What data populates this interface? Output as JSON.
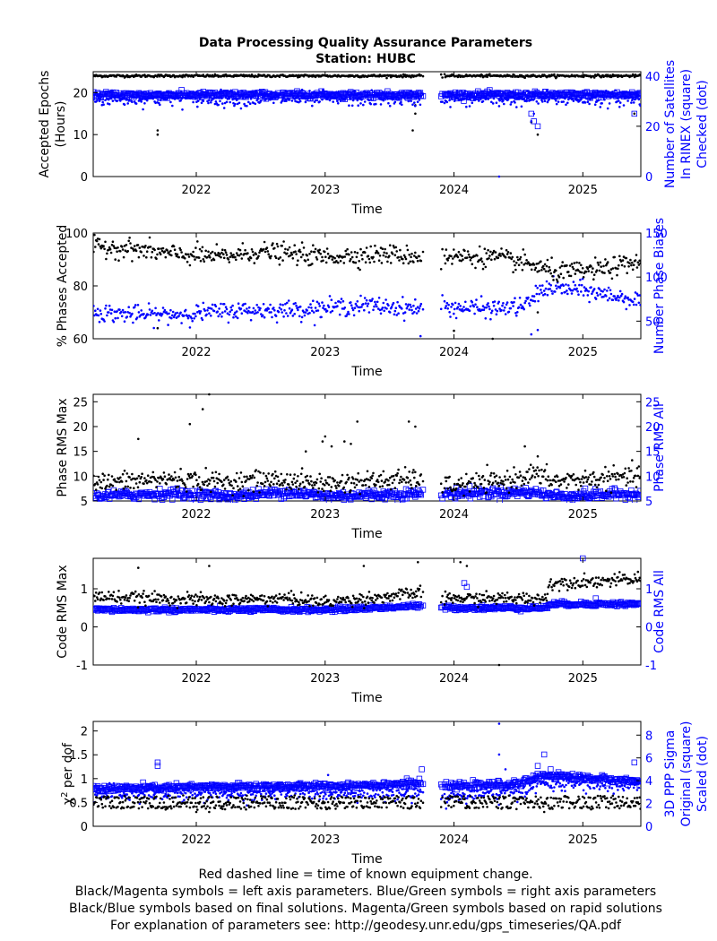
{
  "chart_data": {
    "title": "Data Processing Quality Assurance Parameters",
    "subtitle": "Station: HUBC",
    "xrange": [
      2021.2,
      2025.45
    ],
    "xticks": [
      "2022",
      "2023",
      "2024",
      "2025"
    ],
    "xtick_values": [
      2022,
      2023,
      2024,
      2025
    ],
    "data_gap": [
      2023.75,
      2023.92
    ],
    "panels": [
      {
        "type": "scatter",
        "xlabel": "Time",
        "ylabel_lines": [
          "Accepted Epochs",
          "(Hours)"
        ],
        "ylabel_right_lines": [
          "Number of Satellites",
          "In RINEX (square)",
          "Checked (dot)"
        ],
        "ylim": [
          0,
          25
        ],
        "yticks": [
          "0",
          "10",
          "20"
        ],
        "ytick_values": [
          0,
          10,
          20
        ],
        "ylim_right": [
          0,
          41.7
        ],
        "yticks_right": [
          "0",
          "20",
          "40"
        ],
        "ytick_values_right": [
          0,
          20,
          40
        ],
        "left_series": {
          "name": "accepted epochs",
          "symbol": "dot",
          "color": "#000000",
          "base": 24,
          "noise": 0.15,
          "lo_extra": [
            [
              2021.7,
              10
            ],
            [
              2021.7,
              11
            ],
            [
              2023.68,
              11
            ],
            [
              2023.7,
              15
            ],
            [
              2023.7,
              17
            ],
            [
              2024.65,
              10
            ],
            [
              2024.6,
              13
            ],
            [
              2025.4,
              15
            ]
          ]
        },
        "right_series": [
          {
            "name": "satellites in RINEX",
            "symbol": "square",
            "color": "#0000ff",
            "base": 32.5,
            "noise": 0.6,
            "lo_extra": [
              [
                2024.6,
                25
              ],
              [
                2024.62,
                22
              ],
              [
                2024.65,
                20
              ],
              [
                2025.4,
                25
              ]
            ]
          },
          {
            "name": "satellites checked",
            "symbol": "dot",
            "color": "#0000ff",
            "base": 31,
            "noise": 1.5,
            "lo_extra": [
              [
                2024.35,
                0
              ],
              [
                2024.35,
                28
              ],
              [
                2024.6,
                22
              ],
              [
                2024.62,
                25
              ]
            ]
          }
        ]
      },
      {
        "type": "scatter",
        "xlabel": "Time",
        "ylabel_lines": [
          "% Phases Accepted"
        ],
        "ylabel_right_lines": [
          "Number Phase Biases"
        ],
        "ylim": [
          60,
          100
        ],
        "yticks": [
          "60",
          "80",
          "100"
        ],
        "ytick_values": [
          60,
          80,
          100
        ],
        "ylim_right": [
          30,
          150
        ],
        "yticks_right": [
          "50",
          "100",
          "150"
        ],
        "ytick_values_right": [
          50,
          100,
          150
        ],
        "left_series": {
          "name": "phases accepted",
          "symbol": "dot",
          "color": "#000000",
          "trend": [
            [
              2021.2,
              95
            ],
            [
              2021.5,
              94
            ],
            [
              2021.8,
              92
            ],
            [
              2022.2,
              91
            ],
            [
              2022.5,
              93
            ],
            [
              2023.0,
              91
            ],
            [
              2023.5,
              92
            ],
            [
              2023.75,
              91
            ],
            [
              2023.92,
              91
            ],
            [
              2024.3,
              91
            ],
            [
              2024.6,
              88
            ],
            [
              2024.8,
              85
            ],
            [
              2025.1,
              86
            ],
            [
              2025.45,
              89
            ]
          ],
          "noise": 1.8,
          "lo_extra": [
            [
              2021.7,
              64
            ],
            [
              2024.0,
              63
            ],
            [
              2024.65,
              70
            ],
            [
              2024.3,
              60
            ]
          ]
        },
        "right_series": [
          {
            "name": "number phase biases",
            "symbol": "dot",
            "color": "#0000ff",
            "trend": [
              [
                2021.2,
                60
              ],
              [
                2021.6,
                57
              ],
              [
                2021.9,
                58
              ],
              [
                2022.3,
                62
              ],
              [
                2022.8,
                63
              ],
              [
                2023.3,
                68
              ],
              [
                2023.75,
                64
              ],
              [
                2023.92,
                66
              ],
              [
                2024.3,
                64
              ],
              [
                2024.55,
                67
              ],
              [
                2024.7,
                88
              ],
              [
                2025.0,
                85
              ],
              [
                2025.45,
                73
              ]
            ],
            "noise": 5,
            "lo_extra": [
              [
                2023.74,
                33
              ],
              [
                2024.6,
                35
              ],
              [
                2024.65,
                40
              ]
            ]
          }
        ]
      },
      {
        "type": "scatter",
        "xlabel": "Time",
        "ylabel_lines": [
          "Phase RMS Max"
        ],
        "ylabel_right_lines": [
          "Phase RMS All"
        ],
        "ylim": [
          5,
          26.5
        ],
        "yticks": [
          "5",
          "10",
          "15",
          "20",
          "25"
        ],
        "ytick_values": [
          5,
          10,
          15,
          20,
          25
        ],
        "ylim_right": [
          5,
          26.5
        ],
        "yticks_right": [
          "5",
          "10",
          "15",
          "20",
          "25"
        ],
        "ytick_values_right": [
          5,
          10,
          15,
          20,
          25
        ],
        "left_series": {
          "name": "phase rms max",
          "symbol": "dot",
          "color": "#000000",
          "trend": [
            [
              2021.2,
              8.5
            ],
            [
              2021.8,
              9.5
            ],
            [
              2022.2,
              8.8
            ],
            [
              2022.6,
              9.3
            ],
            [
              2023.0,
              8.5
            ],
            [
              2023.75,
              9.5
            ],
            [
              2023.92,
              8
            ],
            [
              2024.4,
              9
            ],
            [
              2024.6,
              10.5
            ],
            [
              2024.8,
              9
            ],
            [
              2025.45,
              10
            ]
          ],
          "noise": 1.0,
          "hi_extra": [
            [
              2021.55,
              17.5
            ],
            [
              2021.95,
              20.5
            ],
            [
              2022.05,
              23.5
            ],
            [
              2022.1,
              26.5
            ],
            [
              2022.98,
              17
            ],
            [
              2023.0,
              18
            ],
            [
              2023.05,
              16
            ],
            [
              2022.85,
              15
            ],
            [
              2023.15,
              17
            ],
            [
              2023.2,
              16.5
            ],
            [
              2023.25,
              21
            ],
            [
              2023.65,
              21
            ],
            [
              2023.7,
              20
            ],
            [
              2024.55,
              16
            ],
            [
              2024.65,
              14
            ]
          ]
        },
        "right_series": [
          {
            "name": "phase rms all",
            "symbol": "square",
            "color": "#0000ff",
            "trend": [
              [
                2021.2,
                6
              ],
              [
                2021.8,
                6.5
              ],
              [
                2022.3,
                6
              ],
              [
                2022.7,
                6.8
              ],
              [
                2023.0,
                6
              ],
              [
                2023.75,
                6.5
              ],
              [
                2023.92,
                6.5
              ],
              [
                2024.6,
                6.8
              ],
              [
                2024.8,
                6
              ],
              [
                2025.45,
                6.5
              ]
            ],
            "noise": 0.5
          }
        ]
      },
      {
        "type": "scatter",
        "xlabel": "Time",
        "ylabel_lines": [
          "Code RMS Max"
        ],
        "ylabel_right_lines": [
          "Code RMS All"
        ],
        "ylim": [
          -1,
          1.8
        ],
        "yticks": [
          "-1",
          "0",
          "1"
        ],
        "ytick_values": [
          -1,
          0,
          1
        ],
        "ylim_right": [
          -1,
          1.8
        ],
        "yticks_right": [
          "-1",
          "0",
          "1"
        ],
        "ytick_values_right": [
          -1,
          0,
          1
        ],
        "left_series": {
          "name": "code rms max",
          "symbol": "dot",
          "color": "#000000",
          "trend": [
            [
              2021.2,
              0.8
            ],
            [
              2021.6,
              0.75
            ],
            [
              2022.2,
              0.7
            ],
            [
              2022.7,
              0.75
            ],
            [
              2023.0,
              0.65
            ],
            [
              2023.5,
              0.8
            ],
            [
              2023.75,
              0.9
            ],
            [
              2023.92,
              0.75
            ],
            [
              2024.5,
              0.75
            ],
            [
              2024.72,
              0.75
            ],
            [
              2024.74,
              1.15
            ],
            [
              2025.45,
              1.25
            ]
          ],
          "noise": 0.08,
          "hi_extra": [
            [
              2021.55,
              1.55
            ],
            [
              2022.1,
              1.6
            ],
            [
              2023.3,
              1.6
            ],
            [
              2023.72,
              1.7
            ],
            [
              2024.05,
              1.7
            ],
            [
              2024.1,
              1.6
            ]
          ],
          "lo_extra": [
            [
              2024.35,
              -1
            ]
          ]
        },
        "right_series": [
          {
            "name": "code rms all",
            "symbol": "square",
            "color": "#0000ff",
            "trend": [
              [
                2021.2,
                0.45
              ],
              [
                2022.5,
                0.45
              ],
              [
                2023.0,
                0.45
              ],
              [
                2023.75,
                0.55
              ],
              [
                2023.92,
                0.5
              ],
              [
                2024.72,
                0.5
              ],
              [
                2024.74,
                0.6
              ],
              [
                2025.45,
                0.6
              ]
            ],
            "noise": 0.03,
            "hi_extra": [
              [
                2024.08,
                1.15
              ],
              [
                2024.1,
                1.05
              ],
              [
                2025.0,
                1.8
              ],
              [
                2025.1,
                0.75
              ]
            ]
          }
        ]
      },
      {
        "type": "scatter",
        "xlabel": "Time",
        "ylabel_chi": "χ",
        "ylabel_chi_sup": "2",
        "ylabel_chi_rest": " per dof",
        "ylabel_right_lines": [
          "3D PPP Sigma",
          "Original (square)",
          "Scaled (dot)"
        ],
        "ylim": [
          0,
          2.2
        ],
        "yticks": [
          "0",
          "0.5",
          "1",
          "1.5",
          "2"
        ],
        "ytick_values": [
          0,
          0.5,
          1,
          1.5,
          2
        ],
        "ylim_right": [
          0,
          9.2
        ],
        "yticks_right": [
          "0",
          "2",
          "4",
          "6",
          "8"
        ],
        "ytick_values_right": [
          0,
          2,
          4,
          6,
          8
        ],
        "left_series": {
          "name": "chi2 per dof",
          "symbol": "dot",
          "color": "#000000",
          "levels": [
            0.4,
            0.5,
            0.6
          ],
          "noise": 0.02,
          "lo_extra": [
            [
              2022.0,
              0.3
            ],
            [
              2022.1,
              0.3
            ],
            [
              2024.7,
              0.3
            ]
          ]
        },
        "right_series": [
          {
            "name": "3D PPP sigma original",
            "symbol": "square",
            "color": "#0000ff",
            "trend": [
              [
                2021.2,
                3.3
              ],
              [
                2022.5,
                3.5
              ],
              [
                2023.0,
                3.5
              ],
              [
                2023.75,
                3.8
              ],
              [
                2023.92,
                3.5
              ],
              [
                2024.5,
                3.7
              ],
              [
                2024.7,
                4.5
              ],
              [
                2025.45,
                3.9
              ]
            ],
            "noise": 0.15,
            "hi_extra": [
              [
                2021.7,
                5.6
              ],
              [
                2021.7,
                5.3
              ],
              [
                2023.75,
                5.0
              ],
              [
                2024.65,
                5.3
              ],
              [
                2024.7,
                6.3
              ],
              [
                2024.75,
                5.0
              ],
              [
                2025.4,
                5.6
              ]
            ]
          },
          {
            "name": "3D PPP sigma scaled",
            "symbol": "dot",
            "color": "#0000ff",
            "trend": [
              [
                2021.2,
                2.8
              ],
              [
                2022.5,
                2.9
              ],
              [
                2023.0,
                3.0
              ],
              [
                2023.75,
                3.0
              ],
              [
                2023.92,
                2.5
              ],
              [
                2024.5,
                3.0
              ],
              [
                2024.7,
                3.8
              ],
              [
                2025.45,
                3.6
              ]
            ],
            "noise": 0.35,
            "hi_extra": [
              [
                2024.35,
                9.0
              ],
              [
                2024.35,
                6.3
              ],
              [
                2024.4,
                5.0
              ]
            ]
          }
        ]
      }
    ],
    "footer_lines": [
      "Red dashed line = time of known equipment change.",
      "Black/Magenta symbols = left axis parameters. Blue/Green symbols = right axis parameters",
      "Black/Blue symbols based on final solutions.  Magenta/Green symbols based on rapid solutions",
      "For explanation of parameters see: http://geodesy.unr.edu/gps_timeseries/QA.pdf"
    ]
  }
}
